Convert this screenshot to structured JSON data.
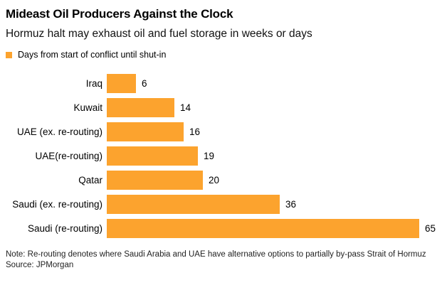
{
  "header": {
    "title": "Mideast Oil Producers Against the Clock",
    "subtitle": "Hormuz halt may exhaust oil and fuel storage in weeks or days"
  },
  "legend": {
    "label": "Days from start of conflict until shut-in",
    "color": "#FCA32E"
  },
  "chart_data": {
    "type": "bar",
    "orientation": "horizontal",
    "title": "Mideast Oil Producers Against the Clock",
    "subtitle": "Hormuz halt may exhaust oil and fuel storage in weeks or days",
    "series_label": "Days from start of conflict until shut-in",
    "categories": [
      "Iraq",
      "Kuwait",
      "UAE (ex. re-routing)",
      "UAE(re-routing)",
      "Qatar",
      "Saudi (ex. re-routing)",
      "Saudi (re-routing)"
    ],
    "values": [
      6,
      14,
      16,
      19,
      20,
      36,
      65
    ],
    "xlim": [
      0,
      65
    ],
    "bar_color": "#FCA32E",
    "value_labels_shown": true,
    "grid": false,
    "legend_position": "top-left"
  },
  "footer": {
    "note": "Note: Re-routing denotes where Saudi Arabia and UAE have alternative options to partially by-pass Strait of Hormuz",
    "source": "Source: JPMorgan"
  }
}
